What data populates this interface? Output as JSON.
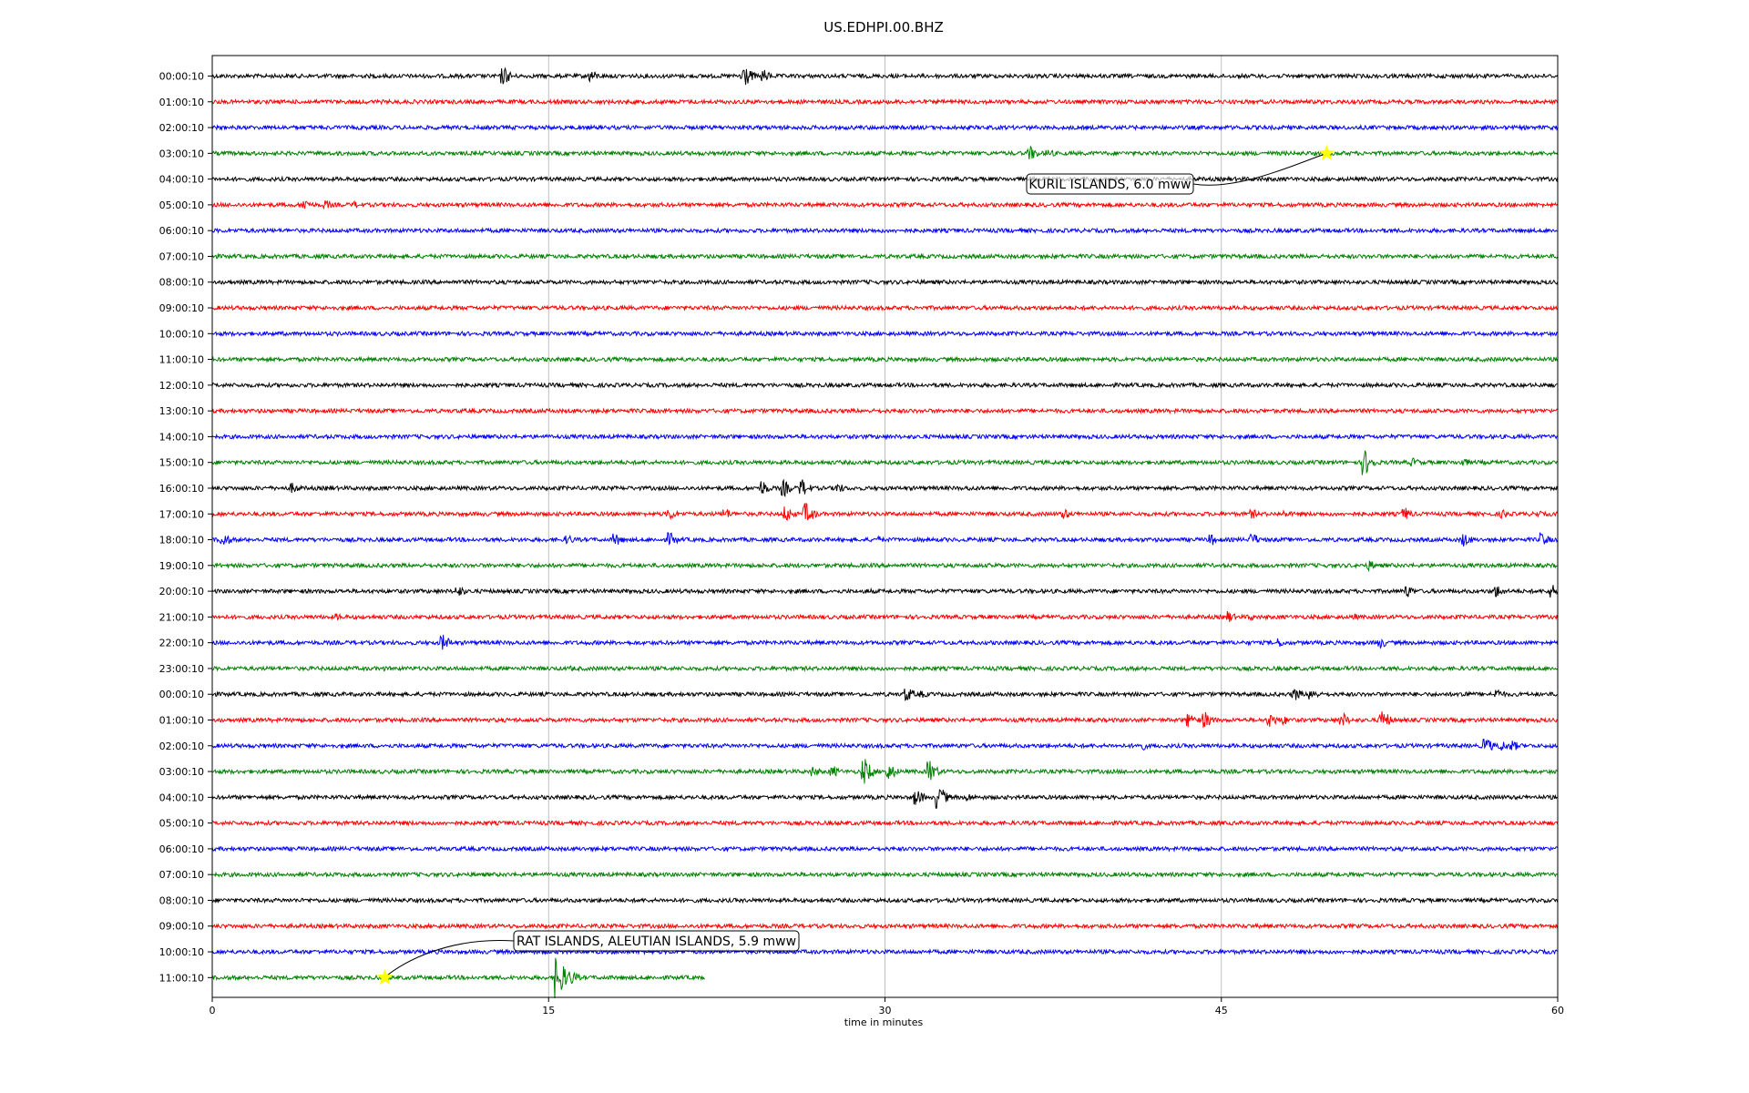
{
  "chart_data": {
    "type": "line",
    "title": "US.EDHPI.00.BHZ",
    "xlabel": "time in minutes",
    "ylabel": "",
    "xlim": [
      0,
      60
    ],
    "xticks": [
      0,
      15,
      30,
      45,
      60
    ],
    "grid_x": true,
    "trace_colors": [
      "#000000",
      "#ff0000",
      "#0000ff",
      "#008000"
    ],
    "row_labels": [
      "00:00:10",
      "01:00:10",
      "02:00:10",
      "03:00:10",
      "04:00:10",
      "05:00:10",
      "06:00:10",
      "07:00:10",
      "08:00:10",
      "09:00:10",
      "10:00:10",
      "11:00:10",
      "12:00:10",
      "13:00:10",
      "14:00:10",
      "15:00:10",
      "16:00:10",
      "17:00:10",
      "18:00:10",
      "19:00:10",
      "20:00:10",
      "21:00:10",
      "22:00:10",
      "23:00:10",
      "00:00:10",
      "01:00:10",
      "02:00:10",
      "03:00:10",
      "04:00:10",
      "05:00:10",
      "06:00:10",
      "07:00:10",
      "08:00:10",
      "09:00:10",
      "10:00:10",
      "11:00:10"
    ],
    "last_row_end_minute": 22,
    "events_per_row": [
      [
        [
          12.9,
          10
        ],
        [
          16.8,
          7
        ],
        [
          23.6,
          14
        ],
        [
          24.5,
          7
        ]
      ],
      [
        [
          15.3,
          3
        ]
      ],
      [],
      [
        [
          36.4,
          8
        ],
        [
          37.2,
          5
        ]
      ],
      [],
      [
        [
          4,
          7
        ],
        [
          5,
          5
        ],
        [
          6.3,
          4
        ]
      ],
      [],
      [],
      [],
      [],
      [],
      [],
      [],
      [],
      [],
      [
        [
          51.3,
          14
        ],
        [
          53.5,
          5
        ],
        [
          55.7,
          5
        ]
      ],
      [
        [
          3.5,
          6
        ],
        [
          5.1,
          3
        ],
        [
          24.4,
          9
        ],
        [
          25.4,
          9
        ],
        [
          26.2,
          10
        ],
        [
          27.8,
          6
        ],
        [
          33.7,
          3
        ]
      ],
      [
        [
          20.3,
          7
        ],
        [
          22.8,
          6
        ],
        [
          25.5,
          9
        ],
        [
          26.4,
          12
        ],
        [
          37.9,
          6
        ],
        [
          46.3,
          5
        ],
        [
          47.8,
          4
        ],
        [
          53.1,
          7
        ],
        [
          57.5,
          5
        ],
        [
          59,
          4
        ]
      ],
      [
        [
          0.4,
          8
        ],
        [
          15.8,
          5
        ],
        [
          17.9,
          7
        ],
        [
          20.3,
          8
        ],
        [
          29.6,
          4
        ],
        [
          44.5,
          6
        ],
        [
          46.3,
          7
        ],
        [
          55.7,
          8
        ],
        [
          59.2,
          8
        ]
      ],
      [
        [
          34.8,
          3
        ],
        [
          51.5,
          6
        ]
      ],
      [
        [
          10.9,
          6
        ],
        [
          29.2,
          3
        ],
        [
          53.2,
          7
        ],
        [
          57.2,
          7
        ],
        [
          59.6,
          8
        ]
      ],
      [
        [
          5.5,
          4
        ],
        [
          45.2,
          7
        ],
        [
          46.2,
          4
        ],
        [
          50.8,
          4
        ]
      ],
      [
        [
          10.2,
          9
        ],
        [
          47.5,
          5
        ],
        [
          52,
          6
        ]
      ],
      [
        [
          7.5,
          3
        ],
        [
          16,
          3
        ]
      ],
      [
        [
          30.9,
          8
        ],
        [
          31.6,
          4
        ],
        [
          48.2,
          7
        ],
        [
          48.9,
          7
        ],
        [
          55.7,
          5
        ],
        [
          57.2,
          6
        ]
      ],
      [
        [
          43.5,
          8
        ],
        [
          44.2,
          9
        ],
        [
          47.1,
          8
        ],
        [
          47.7,
          5
        ],
        [
          50.3,
          8
        ],
        [
          52.1,
          11
        ]
      ],
      [
        [
          41.3,
          6
        ],
        [
          56.7,
          9
        ],
        [
          57.4,
          6
        ],
        [
          57.9,
          6
        ]
      ],
      [
        [
          26.7,
          6
        ],
        [
          27.6,
          6
        ],
        [
          29,
          14
        ],
        [
          30.1,
          9
        ],
        [
          31.9,
          12
        ]
      ],
      [
        [
          31.3,
          9
        ],
        [
          32.3,
          13
        ],
        [
          33.6,
          5
        ]
      ],
      [],
      [],
      [],
      [],
      [],
      [],
      [
        [
          15.3,
          24
        ],
        [
          15.9,
          8
        ]
      ]
    ],
    "annotations": [
      {
        "text": "KURIL ISLANDS, 6.0 mww",
        "row": 3,
        "minute": 49.7
      },
      {
        "text": "RAT ISLANDS, ALEUTIAN ISLANDS, 5.9 mww",
        "row": 35,
        "minute": 7.7
      }
    ],
    "marker_color": "#ffff00"
  }
}
